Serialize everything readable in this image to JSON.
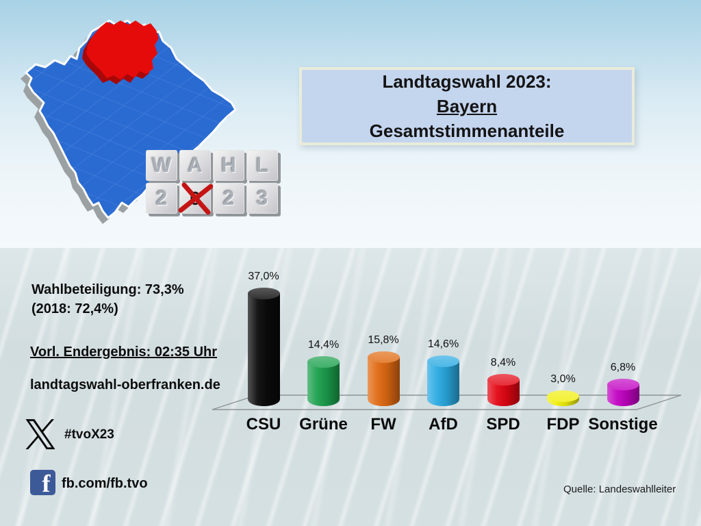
{
  "title_box": {
    "line1": "Landtagswahl 2023:",
    "line2": "Bayern",
    "line3": "Gesamtstimmenanteile"
  },
  "info": {
    "turnout_line1": "Wahlbeteiligung: 73,3%",
    "turnout_line2": "(2018: 72,4%)",
    "result_time": "Vorl. Endergebnis: 02:35 Uhr",
    "website": "landtagswahl-oberfranken.de",
    "x_hashtag": "#tvoX23",
    "facebook": "fb.com/fb.tvo"
  },
  "source": "Quelle: Landeswahlleiter",
  "cubes": {
    "top": [
      "W",
      "A",
      "H",
      "L"
    ],
    "bottom": [
      "2",
      "0",
      "2",
      "3"
    ],
    "crossed_index": 1
  },
  "colors": {
    "bavaria_blue": "#2a6bd2",
    "oberfranken_red": "#e60b0b",
    "title_box_fill": "#c4d5ee",
    "facebook_blue": "#3d5a98"
  },
  "chart_data": {
    "type": "bar",
    "title": "Landtagswahl 2023: Bayern Gesamtstimmenanteile",
    "categories": [
      "CSU",
      "Grüne",
      "FW",
      "AfD",
      "SPD",
      "FDP",
      "Sonstige"
    ],
    "values": [
      37.0,
      14.4,
      15.8,
      14.6,
      8.4,
      3.0,
      6.8
    ],
    "value_labels": [
      "37,0%",
      "14,4%",
      "15,8%",
      "14,6%",
      "8,4%",
      "3,0%",
      "6,8%"
    ],
    "colors": [
      "#0b0b0b",
      "#1ca04d",
      "#e06a12",
      "#2aaae2",
      "#e30613",
      "#f0ee0c",
      "#c203c2"
    ],
    "unit": "%",
    "ylim": [
      0,
      40
    ],
    "grid": false,
    "legend": "none",
    "style": "3d-cylinders-on-perspective-floor"
  }
}
